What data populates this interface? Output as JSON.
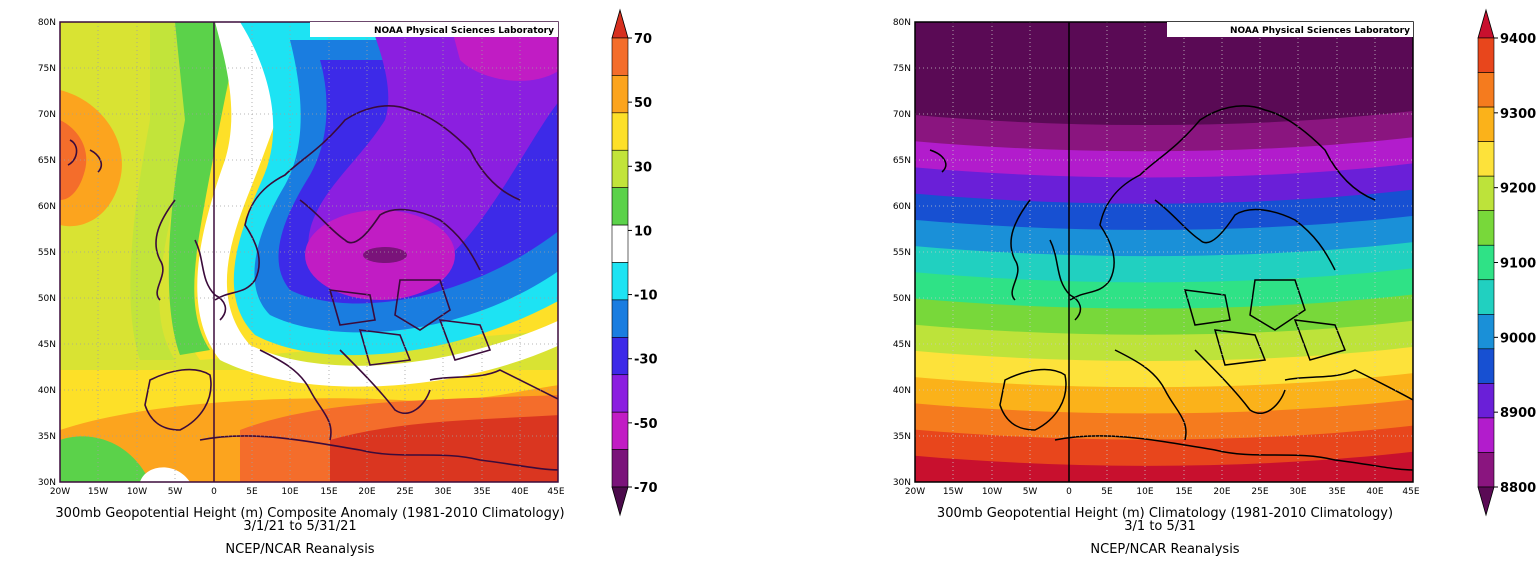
{
  "panels": [
    {
      "credit": "NOAA Physical Sciences Laboratory",
      "caption_line1": "300mb Geopotential Height (m) Composite Anomaly (1981-2010 Climatology)",
      "caption_line2": "3/1/21  to 5/31/21",
      "caption_line3": "NCEP/NCAR Reanalysis",
      "lat_labels": [
        "80N",
        "75N",
        "70N",
        "65N",
        "60N",
        "55N",
        "50N",
        "45N",
        "40N",
        "35N",
        "30N"
      ],
      "lon_labels": [
        "20W",
        "15W",
        "10W",
        "5W",
        "0",
        "5E",
        "10E",
        "15E",
        "20E",
        "25E",
        "30E",
        "35E",
        "40E",
        "45E"
      ],
      "colorbar": {
        "labels": [
          "70",
          "50",
          "30",
          "10",
          "-10",
          "-30",
          "-50",
          "-70"
        ],
        "colors": [
          "#d7301f",
          "#f46d2b",
          "#fca41e",
          "#fde028",
          "#c2e43a",
          "#5bd24a",
          "#ffffff",
          "#1de3f3",
          "#1a7de0",
          "#3d2ae8",
          "#8b1fe0",
          "#c11cc4",
          "#7a137a",
          "#4b0a4b"
        ]
      }
    },
    {
      "credit": "NOAA Physical Sciences Laboratory",
      "caption_line1": "300mb Geopotential Height (m) Climatology (1981-2010 Climatology)",
      "caption_line2": "3/1  to 5/31",
      "caption_line3": "NCEP/NCAR Reanalysis",
      "lat_labels": [
        "80N",
        "75N",
        "70N",
        "65N",
        "60N",
        "55N",
        "50N",
        "45N",
        "40N",
        "35N",
        "30N"
      ],
      "lon_labels": [
        "20W",
        "15W",
        "10W",
        "5W",
        "0",
        "5E",
        "10E",
        "15E",
        "20E",
        "25E",
        "30E",
        "35E",
        "40E",
        "45E"
      ],
      "colorbar": {
        "labels": [
          "9400",
          "9300",
          "9200",
          "9100",
          "9000",
          "8900",
          "8800"
        ],
        "colors": [
          "#c8102e",
          "#e8461c",
          "#f57b1e",
          "#fbb21a",
          "#fde23a",
          "#bde33a",
          "#78d83a",
          "#2fe286",
          "#21d0c0",
          "#1a90d8",
          "#1750d2",
          "#6a1fd8",
          "#b21ccc",
          "#8a157f",
          "#5a0a55"
        ]
      }
    }
  ]
}
